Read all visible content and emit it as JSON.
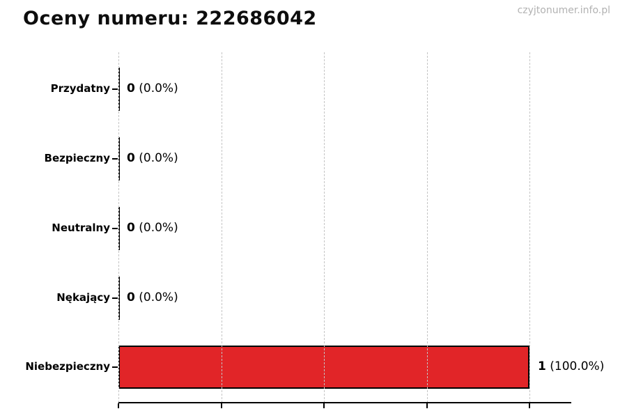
{
  "header": {
    "title": "Oceny numeru: 222686042",
    "watermark": "czyjtonumer.info.pl"
  },
  "chart_data": {
    "type": "bar",
    "orientation": "horizontal",
    "title": "Oceny numeru: 222686042",
    "categories": [
      "Przydatny",
      "Bezpieczny",
      "Neutralny",
      "Nękający",
      "Niebezpieczny"
    ],
    "values": [
      0,
      0,
      0,
      0,
      1
    ],
    "count_labels": [
      "0",
      "0",
      "0",
      "0",
      "1"
    ],
    "percent_labels": [
      "(0.0%)",
      "(0.0%)",
      "(0.0%)",
      "(0.0%)",
      "(100.0%)"
    ],
    "xlabel": "",
    "ylabel": "",
    "xlim": [
      0,
      1.102
    ],
    "xticks": [
      0,
      0.25,
      0.5,
      0.75,
      1.0
    ],
    "grid": "dashed-vertical",
    "legend": "none",
    "bar_color": "#e12528",
    "bar_edge_color": "#000000",
    "zero_bar_color": "#000000"
  }
}
